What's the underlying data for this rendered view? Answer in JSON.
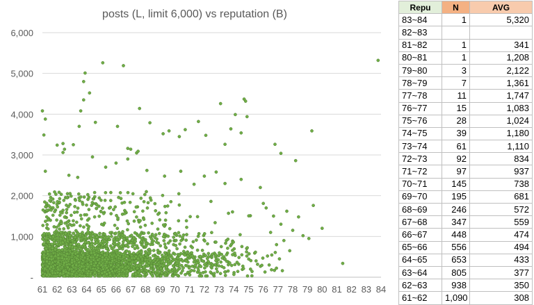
{
  "colors": {
    "marker": "#70ad47",
    "marker_stroke": "#507e32",
    "grid": "#d9d9d9",
    "header_repu": "#e2efda",
    "header_n": "#f4b183",
    "header_avg": "#f8cbad"
  },
  "chart_data": {
    "type": "scatter",
    "title": "posts (L, limit 6,000) vs reputation (B)",
    "xlabel": "",
    "ylabel": "",
    "xlim": [
      61,
      84
    ],
    "ylim": [
      0,
      6000
    ],
    "x_ticks": [
      "61",
      "62",
      "63",
      "64",
      "65",
      "66",
      "67",
      "68",
      "69",
      "70",
      "71",
      "72",
      "73",
      "74",
      "75",
      "76",
      "77",
      "78",
      "79",
      "80",
      "81",
      "82",
      "83",
      "84"
    ],
    "y_ticks": [
      "-",
      "1,000",
      "2,000",
      "3,000",
      "4,000",
      "5,000",
      "6,000"
    ],
    "grid": "horizontal",
    "legend": "none",
    "points": [
      [
        61.0,
        4080
      ],
      [
        61.1,
        3490
      ],
      [
        61.2,
        3880
      ],
      [
        61.2,
        2600
      ],
      [
        61.5,
        1880
      ],
      [
        62.0,
        3240
      ],
      [
        62.4,
        3280
      ],
      [
        62.5,
        3140
      ],
      [
        62.4,
        3060
      ],
      [
        63.1,
        3250
      ],
      [
        63.5,
        3700
      ],
      [
        63.6,
        4080
      ],
      [
        63.8,
        4350
      ],
      [
        63.8,
        4800
      ],
      [
        63.9,
        5010
      ],
      [
        64.2,
        4520
      ],
      [
        64.6,
        3800
      ],
      [
        65.1,
        5260
      ],
      [
        66.1,
        3700
      ],
      [
        66.5,
        5190
      ],
      [
        66.8,
        3160
      ],
      [
        67.0,
        3140
      ],
      [
        67.4,
        3050
      ],
      [
        67.5,
        3090
      ],
      [
        67.6,
        4140
      ],
      [
        68.3,
        3790
      ],
      [
        69.2,
        3520
      ],
      [
        69.6,
        3590
      ],
      [
        70.3,
        3450
      ],
      [
        70.7,
        3620
      ],
      [
        71.6,
        3820
      ],
      [
        72.1,
        3480
      ],
      [
        73.1,
        4260
      ],
      [
        73.4,
        3260
      ],
      [
        73.8,
        3640
      ],
      [
        74.1,
        3990
      ],
      [
        74.5,
        3540
      ],
      [
        74.7,
        4370
      ],
      [
        74.8,
        4320
      ],
      [
        74.9,
        3940
      ],
      [
        76.8,
        3260
      ],
      [
        77.2,
        3040
      ],
      [
        78.2,
        2860
      ],
      [
        79.3,
        3590
      ],
      [
        79.4,
        1760
      ],
      [
        80.0,
        1200
      ],
      [
        81.4,
        340
      ],
      [
        83.8,
        5320
      ],
      [
        62.8,
        2500
      ],
      [
        63.4,
        2450
      ],
      [
        64.4,
        2950
      ],
      [
        65.3,
        2700
      ],
      [
        66.0,
        2800
      ],
      [
        66.8,
        2900
      ],
      [
        68.1,
        2620
      ],
      [
        69.3,
        2480
      ],
      [
        70.4,
        2600
      ],
      [
        71.3,
        2280
      ],
      [
        72.0,
        2480
      ],
      [
        72.8,
        2580
      ],
      [
        73.4,
        2300
      ],
      [
        74.5,
        2400
      ],
      [
        75.8,
        2200
      ],
      [
        76.2,
        1700
      ],
      [
        76.7,
        1500
      ],
      [
        77.2,
        1300
      ],
      [
        77.6,
        1620
      ],
      [
        78.4,
        1480
      ],
      [
        76.5,
        1100
      ],
      [
        76.9,
        800
      ],
      [
        77.4,
        900
      ],
      [
        77.8,
        650
      ],
      [
        78.0,
        1150
      ],
      [
        78.7,
        1020
      ],
      [
        79.1,
        950
      ],
      [
        77.1,
        450
      ],
      [
        76.4,
        300
      ],
      [
        77.3,
        160
      ]
    ],
    "dense_counts": {
      "61~62": 1090,
      "62~63": 938,
      "63~64": 805,
      "64~65": 653,
      "65~66": 556,
      "66~67": 448,
      "67~68": 347,
      "68~69": 246,
      "69~70": 195,
      "70~71": 145,
      "71~72": 97,
      "72~73": 92,
      "73~74": 61,
      "74~75": 39,
      "75~76": 28,
      "76~77": 15
    }
  },
  "table": {
    "headers": [
      "Repu",
      "N",
      "AVG"
    ],
    "rows": [
      [
        "83~84",
        "1",
        "5,320"
      ],
      [
        "82~83",
        "",
        ""
      ],
      [
        "81~82",
        "1",
        "341"
      ],
      [
        "80~81",
        "1",
        "1,208"
      ],
      [
        "79~80",
        "3",
        "2,122"
      ],
      [
        "78~79",
        "7",
        "1,361"
      ],
      [
        "77~78",
        "11",
        "1,747"
      ],
      [
        "76~77",
        "15",
        "1,083"
      ],
      [
        "75~76",
        "28",
        "1,024"
      ],
      [
        "74~75",
        "39",
        "1,180"
      ],
      [
        "73~74",
        "61",
        "1,110"
      ],
      [
        "72~73",
        "92",
        "834"
      ],
      [
        "71~72",
        "97",
        "937"
      ],
      [
        "70~71",
        "145",
        "738"
      ],
      [
        "69~70",
        "195",
        "681"
      ],
      [
        "68~69",
        "246",
        "572"
      ],
      [
        "67~68",
        "347",
        "559"
      ],
      [
        "66~67",
        "448",
        "474"
      ],
      [
        "65~66",
        "556",
        "494"
      ],
      [
        "64~65",
        "653",
        "433"
      ],
      [
        "63~64",
        "805",
        "377"
      ],
      [
        "62~63",
        "938",
        "350"
      ],
      [
        "61~62",
        "1,090",
        "308"
      ]
    ]
  }
}
